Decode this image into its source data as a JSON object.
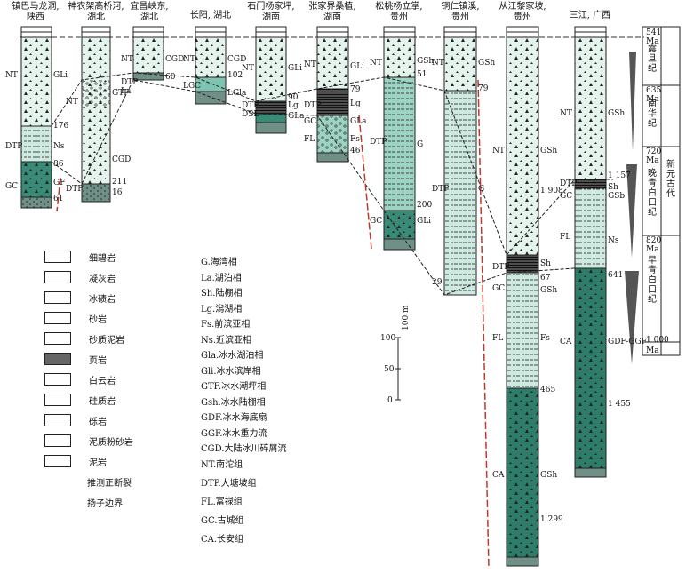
{
  "headers": [
    {
      "text": "镇巴马龙洞,\n陕西"
    },
    {
      "text": "神农架高桥河,\n湖北"
    },
    {
      "text": "宜昌峡东,\n湖北"
    },
    {
      "text": "长阳, 湖北"
    },
    {
      "text": "石门杨家坪,\n湖南"
    },
    {
      "text": "张家界桑植,\n湖南"
    },
    {
      "text": "松桃杨立掌,\n贵州"
    },
    {
      "text": "铜仁镇溪,\n贵州"
    },
    {
      "text": "从江黎家坡,\n贵州"
    },
    {
      "text": "三江, 广西"
    }
  ],
  "legend": [
    {
      "label": "细碧岩"
    },
    {
      "label": "凝灰岩"
    },
    {
      "label": "冰碛岩"
    },
    {
      "label": "砂岩"
    },
    {
      "label": "砂质泥岩"
    },
    {
      "label": "页岩"
    },
    {
      "label": "白云岩"
    },
    {
      "label": "硅质岩"
    },
    {
      "label": "砾岩"
    },
    {
      "label": "泥质粉砂岩"
    },
    {
      "label": "泥岩"
    },
    {
      "label": "推测正断裂"
    },
    {
      "label": "扬子边界"
    }
  ],
  "facies": [
    "G.海湾相",
    "La.湖泊相",
    "Sh.陆棚相",
    "Lg.潟湖相",
    "Fs.前滨亚相",
    "Ns.近滨亚相",
    "Gla.冰水湖泊相",
    "Gli.冰水滨岸相",
    "GTF.冰水潮坪相",
    "Gsh.冰水陆棚相",
    "GDF.冰水海底扇",
    "GGF.冰水重力流",
    "CGD.大陆冰川碎屑流"
  ],
  "formations": [
    "NT.南沱组",
    "DTP.大塘坡组",
    "FL.富禄组",
    "GC.古城组",
    "CA.长安组"
  ],
  "scale": {
    "unit": "100 m",
    "ticks": [
      "100",
      "50",
      "0"
    ]
  },
  "timescale": {
    "ages": [
      "541",
      "Ma",
      "635",
      "Ma",
      "720",
      "Ma",
      "820",
      "Ma",
      "1 000",
      "Ma"
    ],
    "periods": [
      "震旦纪",
      "南华纪",
      "晚青白口纪",
      "早青白口纪"
    ],
    "era": "新元古代"
  },
  "col_labels": {
    "c1": [
      "NT",
      "GLi",
      "176",
      "DTP",
      "Ns",
      "86",
      "GC",
      "GF",
      "61"
    ],
    "c2": [
      "NT",
      "GTF",
      "CGD",
      "211",
      "DTP",
      "16"
    ],
    "c3": [
      "NT",
      "CGD",
      "60",
      "DTP",
      "La"
    ],
    "c4": [
      "NT",
      "CGD",
      "102",
      "LGC",
      "LGla"
    ],
    "c5": [
      "NT",
      "GLi",
      "90",
      "DTP",
      "Lg",
      "DSL",
      "GLa"
    ],
    "c6": [
      "NT",
      "GLi",
      "79",
      "DTP",
      "Lg",
      "GC",
      "GLa",
      "FL",
      "Fs",
      "46"
    ],
    "c7": [
      "NT",
      "GSh",
      "51",
      "DTP",
      "G",
      "200",
      "GC",
      "GLi"
    ],
    "c8": [
      "NT",
      "GSh",
      "79",
      "DTP",
      "G",
      "29"
    ],
    "c9": [
      "NT",
      "GSh",
      "1 908",
      "DTP",
      "Sh",
      "67",
      "GC",
      "GSh",
      "FL",
      "Fs",
      "465",
      "CA",
      "GSh",
      "1 299"
    ],
    "c10": [
      "NT",
      "GSh",
      "1 157",
      "DTP",
      "Sh",
      "GC",
      "GSb",
      "FL",
      "Ns",
      "641",
      "CA",
      "GDF-GGF",
      "1 455"
    ]
  }
}
